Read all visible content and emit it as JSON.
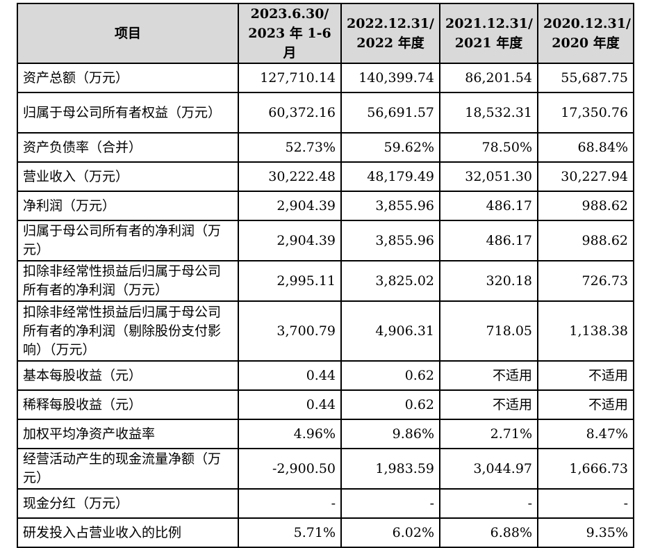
{
  "table": {
    "headers": [
      {
        "line1": "项目",
        "line2": ""
      },
      {
        "line1": "2023.6.30/",
        "line2": "2023 年 1-6 月"
      },
      {
        "line1": "2022.12.31/",
        "line2": "2022 年度"
      },
      {
        "line1": "2021.12.31/",
        "line2": "2021 年度"
      },
      {
        "line1": "2020.12.31/",
        "line2": "2020 年度"
      }
    ],
    "rows": [
      {
        "label": "资产总额（万元）",
        "values": [
          "127,710.14",
          "140,399.74",
          "86,201.54",
          "55,687.75"
        ]
      },
      {
        "label": "归属于母公司所有者权益（万元）",
        "values": [
          "60,372.16",
          "56,691.57",
          "18,532.31",
          "17,350.76"
        ]
      },
      {
        "label": "资产负债率（合并）",
        "values": [
          "52.73%",
          "59.62%",
          "78.50%",
          "68.84%"
        ]
      },
      {
        "label": "营业收入（万元）",
        "values": [
          "30,222.48",
          "48,179.49",
          "32,051.30",
          "30,227.94"
        ]
      },
      {
        "label": "净利润（万元）",
        "values": [
          "2,904.39",
          "3,855.96",
          "486.17",
          "988.62"
        ]
      },
      {
        "label": "归属于母公司所有者的净利润（万元）",
        "values": [
          "2,904.39",
          "3,855.96",
          "486.17",
          "988.62"
        ]
      },
      {
        "label": "扣除非经常性损益后归属于母公司所有者的净利润（万元）",
        "values": [
          "2,995.11",
          "3,825.02",
          "320.18",
          "726.73"
        ]
      },
      {
        "label": "扣除非经常性损益后归属于母公司所有者的净利润（剔除股份支付影响）（万元）",
        "values": [
          "3,700.79",
          "4,906.31",
          "718.05",
          "1,138.38"
        ]
      },
      {
        "label": "基本每股收益（元）",
        "values": [
          "0.44",
          "0.62",
          "不适用",
          "不适用"
        ]
      },
      {
        "label": "稀释每股收益（元）",
        "values": [
          "0.44",
          "0.62",
          "不适用",
          "不适用"
        ]
      },
      {
        "label": "加权平均净资产收益率",
        "values": [
          "4.96%",
          "9.86%",
          "2.71%",
          "8.47%"
        ]
      },
      {
        "label": "经营活动产生的现金流量净额（万元）",
        "values": [
          "-2,900.50",
          "1,983.59",
          "3,044.97",
          "1,666.73"
        ]
      },
      {
        "label": "现金分红（万元）",
        "values": [
          "-",
          "-",
          "-",
          "-"
        ]
      },
      {
        "label": "研发投入占营业收入的比例",
        "values": [
          "5.71%",
          "6.02%",
          "6.88%",
          "9.35%"
        ]
      }
    ]
  }
}
